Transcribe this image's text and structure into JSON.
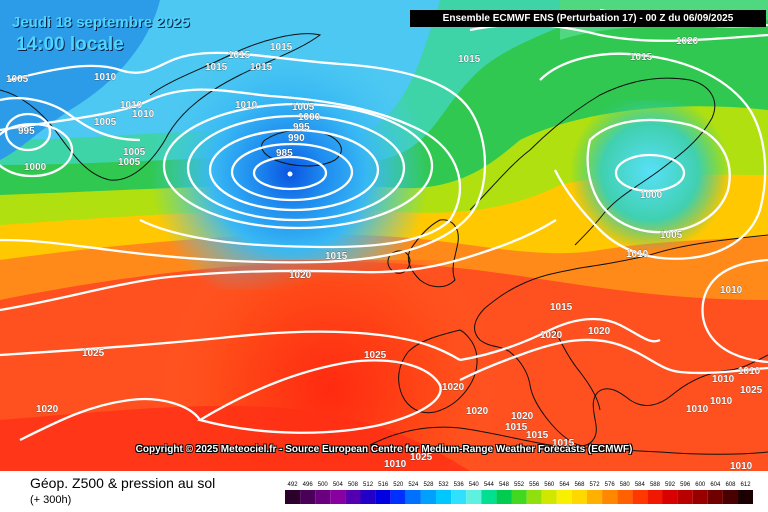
{
  "header": {
    "date": "Jeudi 18 septembre 2025",
    "time": "14:00 locale",
    "model_banner": "Ensemble ECMWF ENS  (Perturbation 17)  -  00 Z du 06/09/2025"
  },
  "map": {
    "copyright": "Copyright © 2025 Meteociel.fr - Source European Centre for Medium-Range Weather Forecasts (ECMWF)",
    "pressure_labels": [
      "1015",
      "1015",
      "1015",
      "1015",
      "1010",
      "1005",
      "1010",
      "1010",
      "1005",
      "1005",
      "995",
      "1000",
      "1005",
      "1005",
      "1000",
      "995",
      "990",
      "985",
      "1015",
      "1020",
      "1015",
      "1015",
      "1000",
      "1005",
      "1010",
      "1010",
      "1020",
      "1015",
      "1025",
      "1025",
      "1020",
      "1025",
      "1020",
      "1020",
      "1020",
      "1010",
      "1010",
      "1010",
      "1010",
      "1020",
      "1020",
      "1015",
      "1015",
      "1015",
      "1010",
      "1025",
      "1010",
      "1010"
    ],
    "low_centers": [
      "985",
      "1000"
    ]
  },
  "footer": {
    "title": "Géop. Z500 & pression au sol",
    "subtitle": "(+ 300h)",
    "scale_values": [
      "492",
      "496",
      "500",
      "504",
      "508",
      "512",
      "516",
      "520",
      "524",
      "528",
      "532",
      "536",
      "540",
      "544",
      "548",
      "552",
      "556",
      "560",
      "564",
      "568",
      "572",
      "576",
      "580",
      "584",
      "588",
      "592",
      "596",
      "600",
      "604",
      "608",
      "612"
    ],
    "scale_colors": [
      "#2b002b",
      "#4a0058",
      "#6a0080",
      "#8800a0",
      "#5500b0",
      "#2200c8",
      "#0000e0",
      "#0030ff",
      "#0070ff",
      "#00a0ff",
      "#00c8ff",
      "#30e0ff",
      "#60f0e0",
      "#00e090",
      "#00cc50",
      "#40d820",
      "#90e010",
      "#d0e800",
      "#f8f000",
      "#ffd800",
      "#ffb000",
      "#ff8800",
      "#ff6000",
      "#ff3800",
      "#f01800",
      "#d80000",
      "#b80000",
      "#980000",
      "#700000",
      "#480000",
      "#1a0000"
    ]
  }
}
